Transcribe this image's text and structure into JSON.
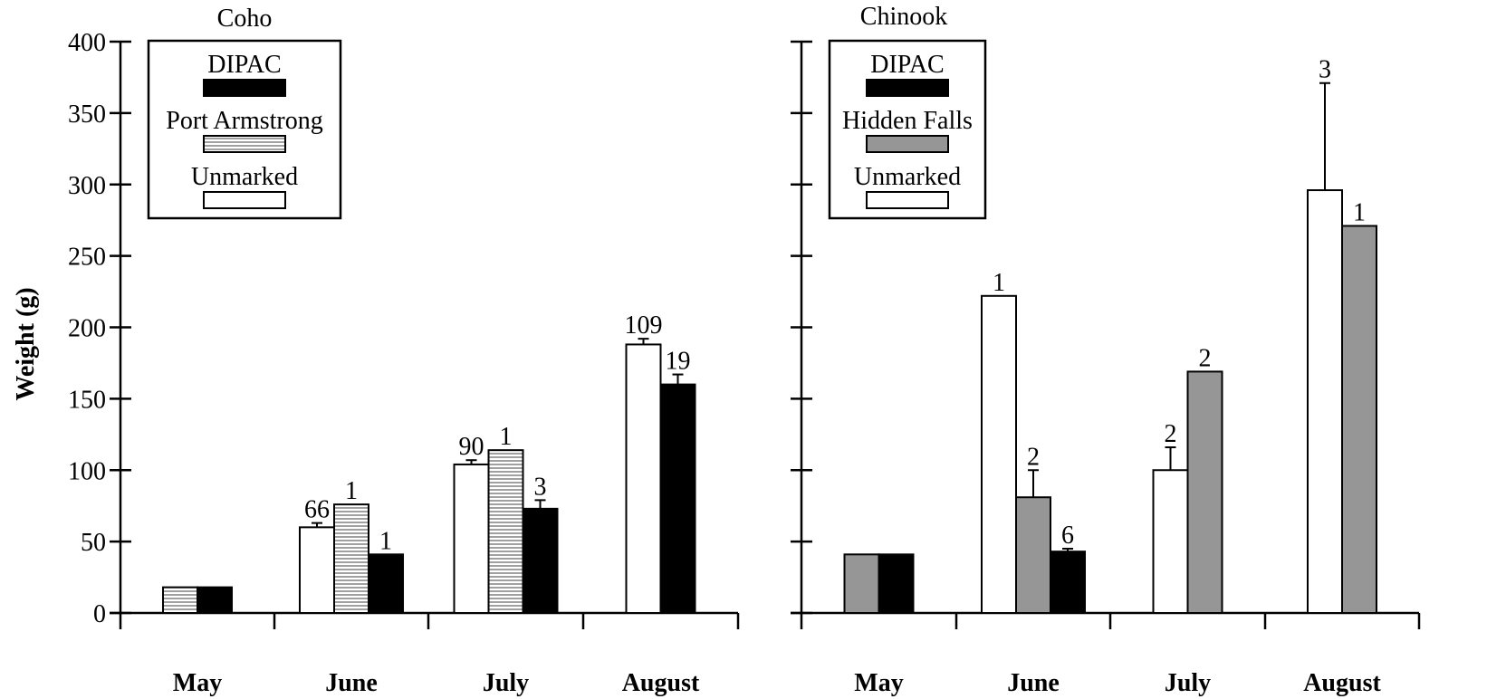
{
  "chart_data": [
    {
      "type": "bar",
      "title": "Coho",
      "ylabel": "Weight (g)",
      "ylim": [
        0,
        400
      ],
      "yticks": [
        0,
        50,
        100,
        150,
        200,
        250,
        300,
        350,
        400
      ],
      "categories": [
        "May",
        "June",
        "July",
        "August"
      ],
      "legend": [
        "DIPAC",
        "Port Armstrong",
        "Unmarked"
      ],
      "legend_placement": "top-left",
      "grid": false,
      "bars": [
        {
          "month": "May",
          "series": "Port Armstrong",
          "value": 18
        },
        {
          "month": "May",
          "series": "DIPAC",
          "value": 18
        },
        {
          "month": "June",
          "series": "Unmarked",
          "value": 60,
          "error": 3,
          "n": "66"
        },
        {
          "month": "June",
          "series": "Port Armstrong",
          "value": 76,
          "n": "1"
        },
        {
          "month": "June",
          "series": "DIPAC",
          "value": 41,
          "n": "1"
        },
        {
          "month": "July",
          "series": "Unmarked",
          "value": 104,
          "error": 3,
          "n": "90"
        },
        {
          "month": "July",
          "series": "Port Armstrong",
          "value": 114,
          "n": "1"
        },
        {
          "month": "July",
          "series": "DIPAC",
          "value": 73,
          "error": 6,
          "n": "3"
        },
        {
          "month": "August",
          "series": "Unmarked",
          "value": 188,
          "error": 4,
          "n": "109"
        },
        {
          "month": "August",
          "series": "DIPAC",
          "value": 160,
          "error": 7,
          "n": "19"
        }
      ]
    },
    {
      "type": "bar",
      "title": "Chinook",
      "ylim": [
        0,
        400
      ],
      "categories": [
        "May",
        "June",
        "July",
        "August"
      ],
      "legend": [
        "DIPAC",
        "Hidden Falls",
        "Unmarked"
      ],
      "legend_placement": "top-left",
      "grid": false,
      "bars": [
        {
          "month": "May",
          "series": "Hidden Falls",
          "value": 41
        },
        {
          "month": "May",
          "series": "DIPAC",
          "value": 41
        },
        {
          "month": "June",
          "series": "Unmarked",
          "value": 222,
          "n": "1"
        },
        {
          "month": "June",
          "series": "Hidden Falls",
          "value": 81,
          "error": 19,
          "n": "2"
        },
        {
          "month": "June",
          "series": "DIPAC",
          "value": 43,
          "error": 2,
          "n": "6"
        },
        {
          "month": "July",
          "series": "Unmarked",
          "value": 100,
          "error": 16,
          "n": "2"
        },
        {
          "month": "July",
          "series": "Hidden Falls",
          "value": 169,
          "n": "2"
        },
        {
          "month": "August",
          "series": "Unmarked",
          "value": 296,
          "error": 75,
          "n": "3"
        },
        {
          "month": "August",
          "series": "Hidden Falls",
          "value": 271,
          "n": "1"
        }
      ]
    }
  ],
  "series_styles": {
    "DIPAC": {
      "fill": "#000000"
    },
    "Port Armstrong": {
      "fill": "#c8c8c8",
      "pattern": "horizontal-lines"
    },
    "Hidden Falls": {
      "fill": "#969696"
    },
    "Unmarked": {
      "fill": "#ffffff"
    }
  }
}
